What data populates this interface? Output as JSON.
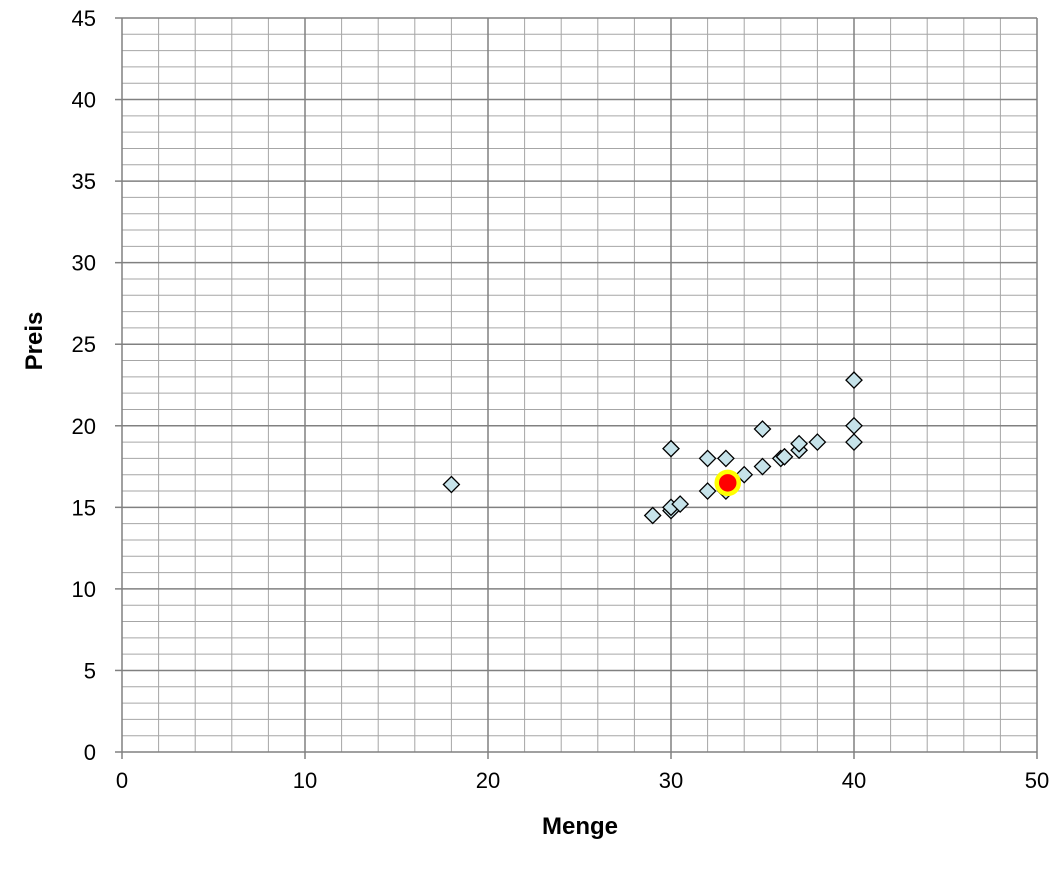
{
  "chart_data": {
    "type": "scatter",
    "xlabel": "Menge",
    "ylabel": "Preis",
    "xlim": [
      0,
      50
    ],
    "ylim": [
      0,
      45
    ],
    "x_major_step": 10,
    "x_minor_step": 2,
    "y_major_step": 5,
    "y_minor_step": 1,
    "grid": true,
    "x_ticks": [
      "0",
      "10",
      "20",
      "30",
      "40",
      "50"
    ],
    "y_ticks": [
      "0",
      "5",
      "10",
      "15",
      "20",
      "25",
      "30",
      "35",
      "40",
      "45"
    ],
    "series": [
      {
        "marker": "diamond",
        "color": "#c6e3ea",
        "points": [
          {
            "x": 18,
            "y": 16.4
          },
          {
            "x": 29,
            "y": 14.5
          },
          {
            "x": 30,
            "y": 14.8
          },
          {
            "x": 30,
            "y": 15.0
          },
          {
            "x": 30,
            "y": 18.6
          },
          {
            "x": 30.5,
            "y": 15.2
          },
          {
            "x": 32,
            "y": 16.0
          },
          {
            "x": 32,
            "y": 18.0
          },
          {
            "x": 33,
            "y": 16.0
          },
          {
            "x": 33,
            "y": 18.0
          },
          {
            "x": 34,
            "y": 17.0
          },
          {
            "x": 35,
            "y": 17.5
          },
          {
            "x": 35,
            "y": 19.8
          },
          {
            "x": 36,
            "y": 18.0
          },
          {
            "x": 36.2,
            "y": 18.1
          },
          {
            "x": 37,
            "y": 18.5
          },
          {
            "x": 37,
            "y": 18.9
          },
          {
            "x": 38,
            "y": 19.0
          },
          {
            "x": 40,
            "y": 19.0
          },
          {
            "x": 40,
            "y": 20.0
          },
          {
            "x": 40,
            "y": 22.8
          }
        ]
      },
      {
        "marker": "circle",
        "color": "#ff0000",
        "outline_color": "#ffff00",
        "points": [
          {
            "x": 33.1,
            "y": 16.5
          }
        ]
      }
    ]
  }
}
